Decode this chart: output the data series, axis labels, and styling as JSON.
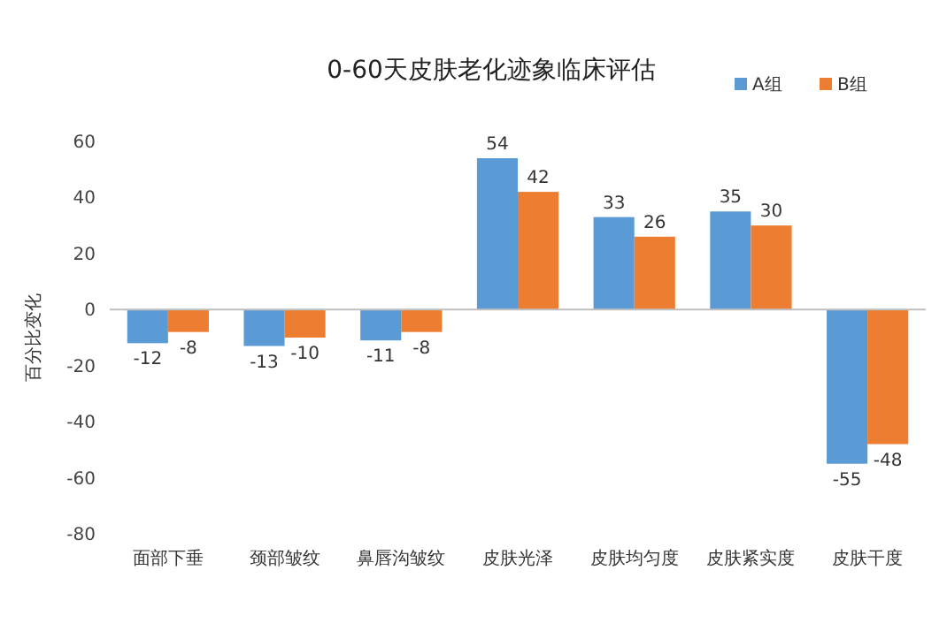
{
  "chart_data": {
    "type": "bar",
    "title": "0-60天皮肤老化迹象临床评估",
    "ylabel": "百分比变化",
    "categories": [
      "面部下垂",
      "颈部皱纹",
      "鼻唇沟皱纹",
      "皮肤光泽",
      "皮肤均匀度",
      "皮肤紧实度",
      "皮肤干度"
    ],
    "series": [
      {
        "name": "A组",
        "color": "#5b9bd5",
        "values": [
          -12,
          -13,
          -11,
          54,
          33,
          35,
          -55
        ]
      },
      {
        "name": "B组",
        "color": "#ed7d31",
        "values": [
          -8,
          -10,
          -8,
          42,
          26,
          30,
          -48
        ]
      }
    ],
    "ylim": [
      -80,
      60
    ],
    "yticks": [
      -80,
      -60,
      -40,
      -20,
      0,
      20,
      40,
      60
    ],
    "legend": "top right",
    "data_labels": true
  }
}
